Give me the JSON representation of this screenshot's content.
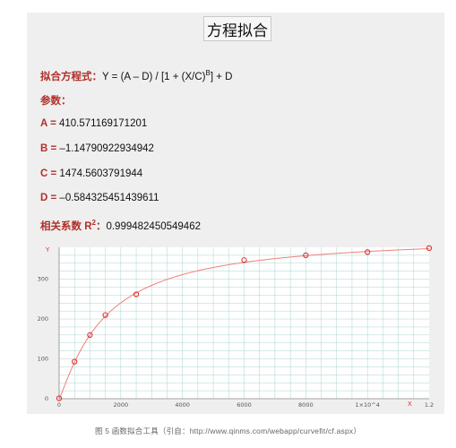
{
  "title": "方程拟合",
  "equation": {
    "label": "拟合方程式：",
    "text_pre": "Y = (A – D) / [1 + (X/C)",
    "exp": "B",
    "text_post": "] + D"
  },
  "params_label": "参数：",
  "params": [
    {
      "label": "A = ",
      "value": "410.571169171201"
    },
    {
      "label": "B = ",
      "value": "–1.14790922934942"
    },
    {
      "label": "C = ",
      "value": "1474.5603791944"
    },
    {
      "label": "D = ",
      "value": "–0.584325451439611"
    }
  ],
  "r2": {
    "label": "相关系数 R",
    "exp": "2",
    "colon": "：",
    "value": "0.999482450549462"
  },
  "caption": "图 5 函数拟合工具（引自：http://www.qinms.com/webapp/curvefit/cf.aspx）",
  "chart_data": {
    "type": "scatter",
    "ylabel": "Y",
    "xlabel": "X",
    "x_exponent_label": "1×10^4",
    "x_tick_labels": [
      "0",
      "2000",
      "4000",
      "6000",
      "8000",
      "1×10^4",
      "1.2"
    ],
    "y_tick_labels": [
      "0",
      "100",
      "200",
      "300"
    ],
    "xlim": [
      0,
      12000
    ],
    "ylim": [
      0,
      380
    ],
    "grid": true,
    "points": [
      {
        "x": 0,
        "y": 1
      },
      {
        "x": 500,
        "y": 93
      },
      {
        "x": 1000,
        "y": 160
      },
      {
        "x": 1500,
        "y": 210
      },
      {
        "x": 2500,
        "y": 262
      },
      {
        "x": 6000,
        "y": 348
      },
      {
        "x": 8000,
        "y": 360
      },
      {
        "x": 10000,
        "y": 368
      },
      {
        "x": 12000,
        "y": 378
      }
    ],
    "fit": {
      "A": 410.571169171201,
      "B": -1.14790922934942,
      "C": 1474.5603791944,
      "D": -0.584325451439611
    },
    "colors": {
      "points": "#e03030",
      "curve": "#f08078",
      "grid": "#aad4d0",
      "axis_label": "#e03030",
      "tick": "#555555"
    }
  }
}
